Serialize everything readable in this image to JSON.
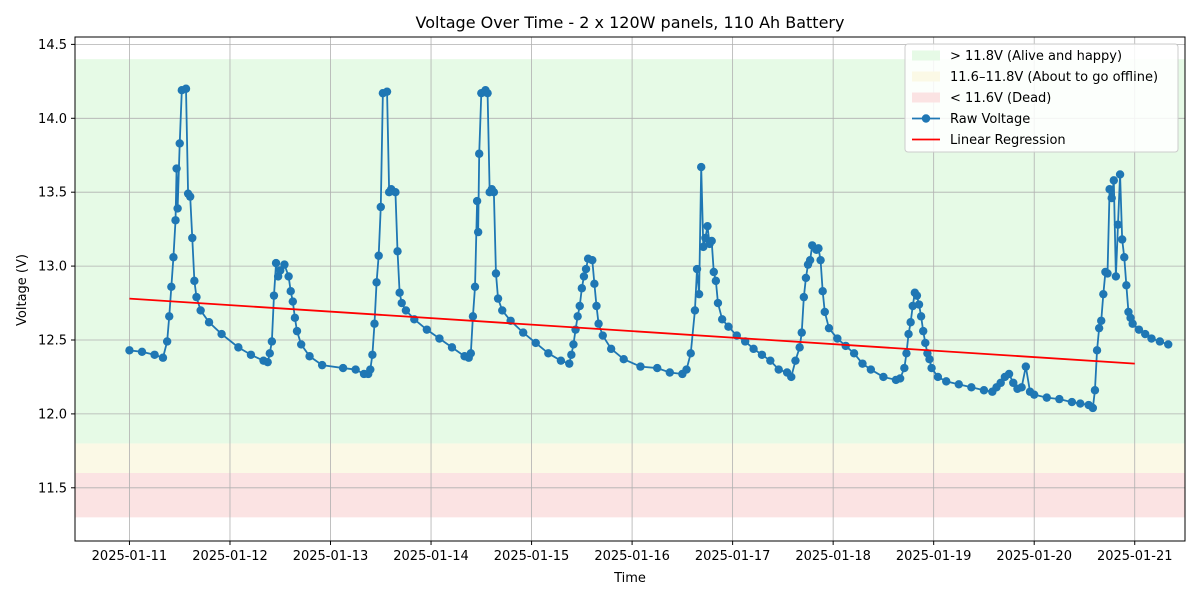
{
  "chart_data": {
    "type": "line",
    "title": "Voltage Over Time - 2 x 120W panels, 110 Ah Battery",
    "xlabel": "Time",
    "ylabel": "Voltage (V)",
    "x_ticks": [
      "2025-01-11",
      "2025-01-12",
      "2025-01-13",
      "2025-01-14",
      "2025-01-15",
      "2025-01-16",
      "2025-01-17",
      "2025-01-18",
      "2025-01-19",
      "2025-01-20",
      "2025-01-21"
    ],
    "y_ticks": [
      "11.5",
      "12.0",
      "12.5",
      "13.0",
      "13.5",
      "14.0",
      "14.5"
    ],
    "xlim": [
      "2025-01-10T11:00",
      "2025-01-21T12:00"
    ],
    "ylim": [
      11.14,
      14.55
    ],
    "grid": true,
    "legend_position": "top-right",
    "bands": [
      {
        "label": "> 11.8V (Alive and happy)",
        "y0": 11.8,
        "y1": 14.4,
        "color": "#e6fae6"
      },
      {
        "label": "11.6–11.8V (About to go offline)",
        "y0": 11.6,
        "y1": 11.8,
        "color": "#fbf9e6"
      },
      {
        "label": "< 11.6V (Dead)",
        "y0": 11.3,
        "y1": 11.6,
        "color": "#fbe3e3"
      }
    ],
    "series": [
      {
        "name": "Raw Voltage",
        "type": "line-markers",
        "color": "#1f77b4",
        "points": [
          [
            "2025-01-11T00:00",
            12.43
          ],
          [
            "2025-01-11T03:00",
            12.42
          ],
          [
            "2025-01-11T06:00",
            12.4
          ],
          [
            "2025-01-11T08:00",
            12.38
          ],
          [
            "2025-01-11T09:00",
            12.49
          ],
          [
            "2025-01-11T09:30",
            12.66
          ],
          [
            "2025-01-11T10:00",
            12.86
          ],
          [
            "2025-01-11T10:30",
            13.06
          ],
          [
            "2025-01-11T11:00",
            13.31
          ],
          [
            "2025-01-11T11:15",
            13.66
          ],
          [
            "2025-01-11T11:30",
            13.39
          ],
          [
            "2025-01-11T12:00",
            13.83
          ],
          [
            "2025-01-11T12:30",
            14.19
          ],
          [
            "2025-01-11T13:30",
            14.2
          ],
          [
            "2025-01-11T14:00",
            13.49
          ],
          [
            "2025-01-11T14:30",
            13.47
          ],
          [
            "2025-01-11T15:00",
            13.19
          ],
          [
            "2025-01-11T15:30",
            12.9
          ],
          [
            "2025-01-11T16:00",
            12.79
          ],
          [
            "2025-01-11T17:00",
            12.7
          ],
          [
            "2025-01-11T19:00",
            12.62
          ],
          [
            "2025-01-11T22:00",
            12.54
          ],
          [
            "2025-01-12T02:00",
            12.45
          ],
          [
            "2025-01-12T05:00",
            12.4
          ],
          [
            "2025-01-12T08:00",
            12.36
          ],
          [
            "2025-01-12T09:00",
            12.35
          ],
          [
            "2025-01-12T09:30",
            12.41
          ],
          [
            "2025-01-12T10:00",
            12.49
          ],
          [
            "2025-01-12T10:30",
            12.8
          ],
          [
            "2025-01-12T11:00",
            13.02
          ],
          [
            "2025-01-12T11:30",
            12.93
          ],
          [
            "2025-01-12T12:00",
            12.97
          ],
          [
            "2025-01-12T13:00",
            13.01
          ],
          [
            "2025-01-12T14:00",
            12.93
          ],
          [
            "2025-01-12T14:30",
            12.83
          ],
          [
            "2025-01-12T15:00",
            12.76
          ],
          [
            "2025-01-12T15:30",
            12.65
          ],
          [
            "2025-01-12T16:00",
            12.56
          ],
          [
            "2025-01-12T17:00",
            12.47
          ],
          [
            "2025-01-12T19:00",
            12.39
          ],
          [
            "2025-01-12T22:00",
            12.33
          ],
          [
            "2025-01-13T03:00",
            12.31
          ],
          [
            "2025-01-13T06:00",
            12.3
          ],
          [
            "2025-01-13T08:00",
            12.27
          ],
          [
            "2025-01-13T09:00",
            12.27
          ],
          [
            "2025-01-13T09:30",
            12.3
          ],
          [
            "2025-01-13T10:00",
            12.4
          ],
          [
            "2025-01-13T10:30",
            12.61
          ],
          [
            "2025-01-13T11:00",
            12.89
          ],
          [
            "2025-01-13T11:30",
            13.07
          ],
          [
            "2025-01-13T12:00",
            13.4
          ],
          [
            "2025-01-13T12:30",
            14.17
          ],
          [
            "2025-01-13T13:30",
            14.18
          ],
          [
            "2025-01-13T14:00",
            13.5
          ],
          [
            "2025-01-13T14:30",
            13.52
          ],
          [
            "2025-01-13T15:30",
            13.5
          ],
          [
            "2025-01-13T16:00",
            13.1
          ],
          [
            "2025-01-13T16:30",
            12.82
          ],
          [
            "2025-01-13T17:00",
            12.75
          ],
          [
            "2025-01-13T18:00",
            12.7
          ],
          [
            "2025-01-13T20:00",
            12.64
          ],
          [
            "2025-01-13T23:00",
            12.57
          ],
          [
            "2025-01-14T02:00",
            12.51
          ],
          [
            "2025-01-14T05:00",
            12.45
          ],
          [
            "2025-01-14T08:00",
            12.39
          ],
          [
            "2025-01-14T09:00",
            12.38
          ],
          [
            "2025-01-14T09:30",
            12.41
          ],
          [
            "2025-01-14T10:00",
            12.66
          ],
          [
            "2025-01-14T10:30",
            12.86
          ],
          [
            "2025-01-14T11:00",
            13.44
          ],
          [
            "2025-01-14T11:15",
            13.23
          ],
          [
            "2025-01-14T11:30",
            13.76
          ],
          [
            "2025-01-14T12:00",
            14.17
          ],
          [
            "2025-01-14T13:00",
            14.19
          ],
          [
            "2025-01-14T13:30",
            14.17
          ],
          [
            "2025-01-14T14:00",
            13.5
          ],
          [
            "2025-01-14T14:30",
            13.52
          ],
          [
            "2025-01-14T15:00",
            13.5
          ],
          [
            "2025-01-14T15:30",
            12.95
          ],
          [
            "2025-01-14T16:00",
            12.78
          ],
          [
            "2025-01-14T17:00",
            12.7
          ],
          [
            "2025-01-14T19:00",
            12.63
          ],
          [
            "2025-01-14T22:00",
            12.55
          ],
          [
            "2025-01-15T01:00",
            12.48
          ],
          [
            "2025-01-15T04:00",
            12.41
          ],
          [
            "2025-01-15T07:00",
            12.36
          ],
          [
            "2025-01-15T09:00",
            12.34
          ],
          [
            "2025-01-15T09:30",
            12.4
          ],
          [
            "2025-01-15T10:00",
            12.47
          ],
          [
            "2025-01-15T10:30",
            12.57
          ],
          [
            "2025-01-15T11:00",
            12.66
          ],
          [
            "2025-01-15T11:30",
            12.73
          ],
          [
            "2025-01-15T12:00",
            12.85
          ],
          [
            "2025-01-15T12:30",
            12.93
          ],
          [
            "2025-01-15T13:00",
            12.98
          ],
          [
            "2025-01-15T13:30",
            13.05
          ],
          [
            "2025-01-15T14:30",
            13.04
          ],
          [
            "2025-01-15T15:00",
            12.88
          ],
          [
            "2025-01-15T15:30",
            12.73
          ],
          [
            "2025-01-15T16:00",
            12.61
          ],
          [
            "2025-01-15T17:00",
            12.53
          ],
          [
            "2025-01-15T19:00",
            12.44
          ],
          [
            "2025-01-15T22:00",
            12.37
          ],
          [
            "2025-01-16T02:00",
            12.32
          ],
          [
            "2025-01-16T06:00",
            12.31
          ],
          [
            "2025-01-16T09:00",
            12.28
          ],
          [
            "2025-01-16T12:00",
            12.27
          ],
          [
            "2025-01-16T13:00",
            12.3
          ],
          [
            "2025-01-16T14:00",
            12.41
          ],
          [
            "2025-01-16T15:00",
            12.7
          ],
          [
            "2025-01-16T15:30",
            12.98
          ],
          [
            "2025-01-16T16:00",
            12.81
          ],
          [
            "2025-01-16T16:30",
            13.67
          ],
          [
            "2025-01-16T17:00",
            13.13
          ],
          [
            "2025-01-16T17:30",
            13.19
          ],
          [
            "2025-01-16T18:00",
            13.27
          ],
          [
            "2025-01-16T18:30",
            13.15
          ],
          [
            "2025-01-16T19:00",
            13.17
          ],
          [
            "2025-01-16T19:30",
            12.96
          ],
          [
            "2025-01-16T20:00",
            12.9
          ],
          [
            "2025-01-16T20:30",
            12.75
          ],
          [
            "2025-01-16T21:30",
            12.64
          ],
          [
            "2025-01-16T23:00",
            12.59
          ],
          [
            "2025-01-17T01:00",
            12.53
          ],
          [
            "2025-01-17T03:00",
            12.49
          ],
          [
            "2025-01-17T05:00",
            12.44
          ],
          [
            "2025-01-17T07:00",
            12.4
          ],
          [
            "2025-01-17T09:00",
            12.36
          ],
          [
            "2025-01-17T11:00",
            12.3
          ],
          [
            "2025-01-17T13:00",
            12.28
          ],
          [
            "2025-01-17T14:00",
            12.25
          ],
          [
            "2025-01-17T15:00",
            12.36
          ],
          [
            "2025-01-17T16:00",
            12.45
          ],
          [
            "2025-01-17T16:30",
            12.55
          ],
          [
            "2025-01-17T17:00",
            12.79
          ],
          [
            "2025-01-17T17:30",
            12.92
          ],
          [
            "2025-01-17T18:00",
            13.01
          ],
          [
            "2025-01-17T18:30",
            13.04
          ],
          [
            "2025-01-17T19:00",
            13.14
          ],
          [
            "2025-01-17T20:00",
            13.11
          ],
          [
            "2025-01-17T20:30",
            13.12
          ],
          [
            "2025-01-17T21:00",
            13.04
          ],
          [
            "2025-01-17T21:30",
            12.83
          ],
          [
            "2025-01-17T22:00",
            12.69
          ],
          [
            "2025-01-17T23:00",
            12.58
          ],
          [
            "2025-01-18T01:00",
            12.51
          ],
          [
            "2025-01-18T03:00",
            12.46
          ],
          [
            "2025-01-18T05:00",
            12.41
          ],
          [
            "2025-01-18T07:00",
            12.34
          ],
          [
            "2025-01-18T09:00",
            12.3
          ],
          [
            "2025-01-18T12:00",
            12.25
          ],
          [
            "2025-01-18T15:00",
            12.23
          ],
          [
            "2025-01-18T16:00",
            12.24
          ],
          [
            "2025-01-18T17:00",
            12.31
          ],
          [
            "2025-01-18T17:30",
            12.41
          ],
          [
            "2025-01-18T18:00",
            12.54
          ],
          [
            "2025-01-18T18:30",
            12.62
          ],
          [
            "2025-01-18T19:00",
            12.73
          ],
          [
            "2025-01-18T19:30",
            12.82
          ],
          [
            "2025-01-18T20:00",
            12.8
          ],
          [
            "2025-01-18T20:30",
            12.74
          ],
          [
            "2025-01-18T21:00",
            12.66
          ],
          [
            "2025-01-18T21:30",
            12.56
          ],
          [
            "2025-01-18T22:00",
            12.48
          ],
          [
            "2025-01-18T22:30",
            12.41
          ],
          [
            "2025-01-18T23:00",
            12.37
          ],
          [
            "2025-01-18T23:30",
            12.31
          ],
          [
            "2025-01-19T01:00",
            12.25
          ],
          [
            "2025-01-19T03:00",
            12.22
          ],
          [
            "2025-01-19T06:00",
            12.2
          ],
          [
            "2025-01-19T09:00",
            12.18
          ],
          [
            "2025-01-19T12:00",
            12.16
          ],
          [
            "2025-01-19T14:00",
            12.15
          ],
          [
            "2025-01-19T15:00",
            12.18
          ],
          [
            "2025-01-19T16:00",
            12.21
          ],
          [
            "2025-01-19T17:00",
            12.25
          ],
          [
            "2025-01-19T18:00",
            12.27
          ],
          [
            "2025-01-19T19:00",
            12.21
          ],
          [
            "2025-01-19T20:00",
            12.17
          ],
          [
            "2025-01-19T21:00",
            12.18
          ],
          [
            "2025-01-19T22:00",
            12.32
          ],
          [
            "2025-01-19T23:00",
            12.15
          ],
          [
            "2025-01-20T00:00",
            12.13
          ],
          [
            "2025-01-20T03:00",
            12.11
          ],
          [
            "2025-01-20T06:00",
            12.1
          ],
          [
            "2025-01-20T09:00",
            12.08
          ],
          [
            "2025-01-20T11:00",
            12.07
          ],
          [
            "2025-01-20T13:00",
            12.06
          ],
          [
            "2025-01-20T14:00",
            12.04
          ],
          [
            "2025-01-20T14:30",
            12.16
          ],
          [
            "2025-01-20T15:00",
            12.43
          ],
          [
            "2025-01-20T15:30",
            12.58
          ],
          [
            "2025-01-20T16:00",
            12.63
          ],
          [
            "2025-01-20T16:30",
            12.81
          ],
          [
            "2025-01-20T17:00",
            12.96
          ],
          [
            "2025-01-20T17:30",
            12.95
          ],
          [
            "2025-01-20T18:00",
            13.52
          ],
          [
            "2025-01-20T18:30",
            13.46
          ],
          [
            "2025-01-20T19:00",
            13.58
          ],
          [
            "2025-01-20T19:30",
            12.93
          ],
          [
            "2025-01-20T20:00",
            13.28
          ],
          [
            "2025-01-20T20:30",
            13.62
          ],
          [
            "2025-01-20T21:00",
            13.18
          ],
          [
            "2025-01-20T21:30",
            13.06
          ],
          [
            "2025-01-20T22:00",
            12.87
          ],
          [
            "2025-01-20T22:30",
            12.69
          ],
          [
            "2025-01-20T23:00",
            12.65
          ],
          [
            "2025-01-20T23:30",
            12.61
          ],
          [
            "2025-01-21T01:00",
            12.57
          ],
          [
            "2025-01-21T02:30",
            12.54
          ],
          [
            "2025-01-21T04:00",
            12.51
          ],
          [
            "2025-01-21T06:00",
            12.49
          ],
          [
            "2025-01-21T08:00",
            12.47
          ]
        ]
      },
      {
        "name": "Linear Regression",
        "type": "line",
        "color": "#ff0000",
        "points": [
          [
            "2025-01-11T00:00",
            12.78
          ],
          [
            "2025-01-21T00:00",
            12.34
          ]
        ]
      }
    ]
  }
}
